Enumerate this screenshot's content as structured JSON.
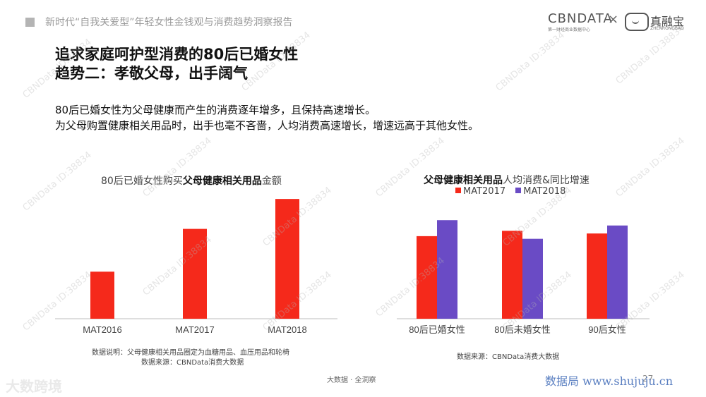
{
  "header": {
    "title": "新时代“自我关爱型”年轻女性金钱观与消费趋势洞察报告",
    "brand_cbn": "CBNDATA",
    "brand_cbn_sub": "第一财经商业数据中心",
    "brand_x": "×",
    "brand_partner": "真融宝",
    "brand_partner_sub": "ZHENRONGBAO"
  },
  "title": {
    "line1": "追求家庭呵护型消费的80后已婚女性",
    "line2": "趋势二：孝敬父母，出手阔气"
  },
  "description": {
    "line1": "80后已婚女性为父母健康而产生的消费逐年增多，且保持高速增长。",
    "line2": "为父母购置健康相关用品时，出手也毫不吝啬，人均消费高速增长，增速远高于其他女性。"
  },
  "left_chart": {
    "title_pre": "80后已婚女性购买",
    "title_bold": "父母健康相关用品",
    "title_post": "金额",
    "note_line1": "数据说明：父母健康相关用品圈定为血糖用品、血压用品和轮椅",
    "note_line2": "数据来源：CBNData消费大数据"
  },
  "right_chart": {
    "title_bold": "父母健康相关用品",
    "title_post": "人均消费&同比增速",
    "note": "数据来源：CBNData消费大数据"
  },
  "chart_data": [
    {
      "type": "bar",
      "categories": [
        "MAT2016",
        "MAT2017",
        "MAT2018"
      ],
      "values": [
        0.22,
        0.42,
        0.56
      ],
      "ylim": [
        0,
        0.6
      ],
      "color": "#f5291b",
      "axis_labels_shown": false
    },
    {
      "type": "bar",
      "categories": [
        "80后已婚女性",
        "80后未婚女性",
        "90后女性"
      ],
      "series": [
        {
          "name": "MAT2017",
          "values": [
            0.31,
            0.33,
            0.32
          ],
          "color": "#f5291b"
        },
        {
          "name": "MAT2018",
          "values": [
            0.37,
            0.3,
            0.35
          ],
          "color": "#6a4bc5"
        }
      ],
      "ylim": [
        0,
        0.45
      ],
      "legend": "top",
      "axis_labels_shown": false
    }
  ],
  "footer": {
    "center": "大数据 · 全洞察",
    "page": "27",
    "watermark_left": "大数跨境",
    "watermark_right": "数据局 www.shujuju.cn"
  },
  "watermark": "CBNData ID:38834"
}
